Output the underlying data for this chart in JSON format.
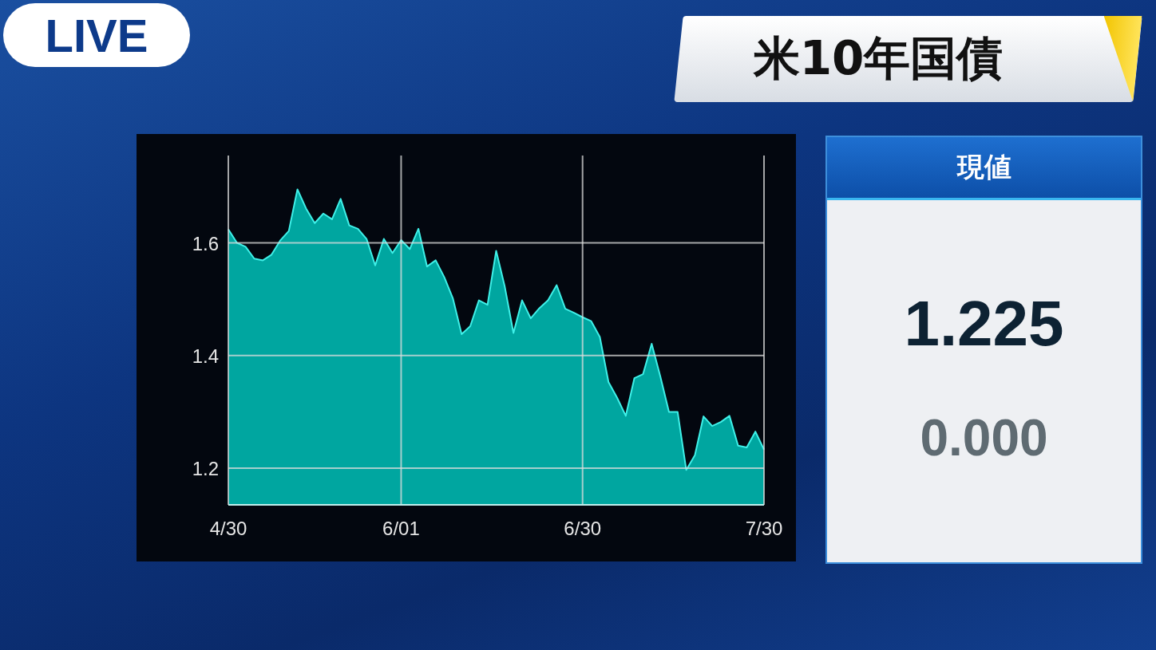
{
  "chart_data": [
    {
      "type": "area",
      "title": "米10年国債",
      "annotations": [
        "LIVE"
      ],
      "categories": [
        "4/30",
        null,
        null,
        null,
        null,
        null,
        null,
        null,
        null,
        null,
        null,
        null,
        null,
        null,
        null,
        null,
        null,
        null,
        null,
        null,
        "6/01",
        null,
        null,
        null,
        null,
        null,
        null,
        null,
        null,
        null,
        null,
        null,
        null,
        null,
        null,
        null,
        null,
        null,
        null,
        null,
        null,
        "6/30",
        null,
        null,
        null,
        null,
        null,
        null,
        null,
        null,
        null,
        null,
        null,
        null,
        null,
        null,
        null,
        null,
        null,
        null,
        null,
        null,
        "7/30"
      ],
      "values": [
        1.624,
        1.6,
        1.593,
        1.572,
        1.569,
        1.579,
        1.604,
        1.621,
        1.695,
        1.661,
        1.635,
        1.652,
        1.642,
        1.678,
        1.631,
        1.625,
        1.607,
        1.56,
        1.607,
        1.582,
        1.605,
        1.589,
        1.625,
        1.558,
        1.569,
        1.539,
        1.501,
        1.438,
        1.452,
        1.498,
        1.49,
        1.586,
        1.522,
        1.44,
        1.498,
        1.466,
        1.484,
        1.498,
        1.525,
        1.483,
        1.476,
        1.468,
        1.461,
        1.433,
        1.353,
        1.325,
        1.293,
        1.36,
        1.367,
        1.421,
        1.363,
        1.3,
        1.3,
        1.197,
        1.223,
        1.292,
        1.275,
        1.282,
        1.293,
        1.24,
        1.237,
        1.265,
        1.233
      ],
      "color": "#00a6a0",
      "ylim": [
        1.135,
        1.755
      ],
      "yticks": [
        1.2,
        1.4,
        1.6
      ],
      "grid": true
    },
    {
      "type": "other",
      "title": "現値",
      "annotations": [
        "1.225",
        "0.000"
      ]
    }
  ]
}
